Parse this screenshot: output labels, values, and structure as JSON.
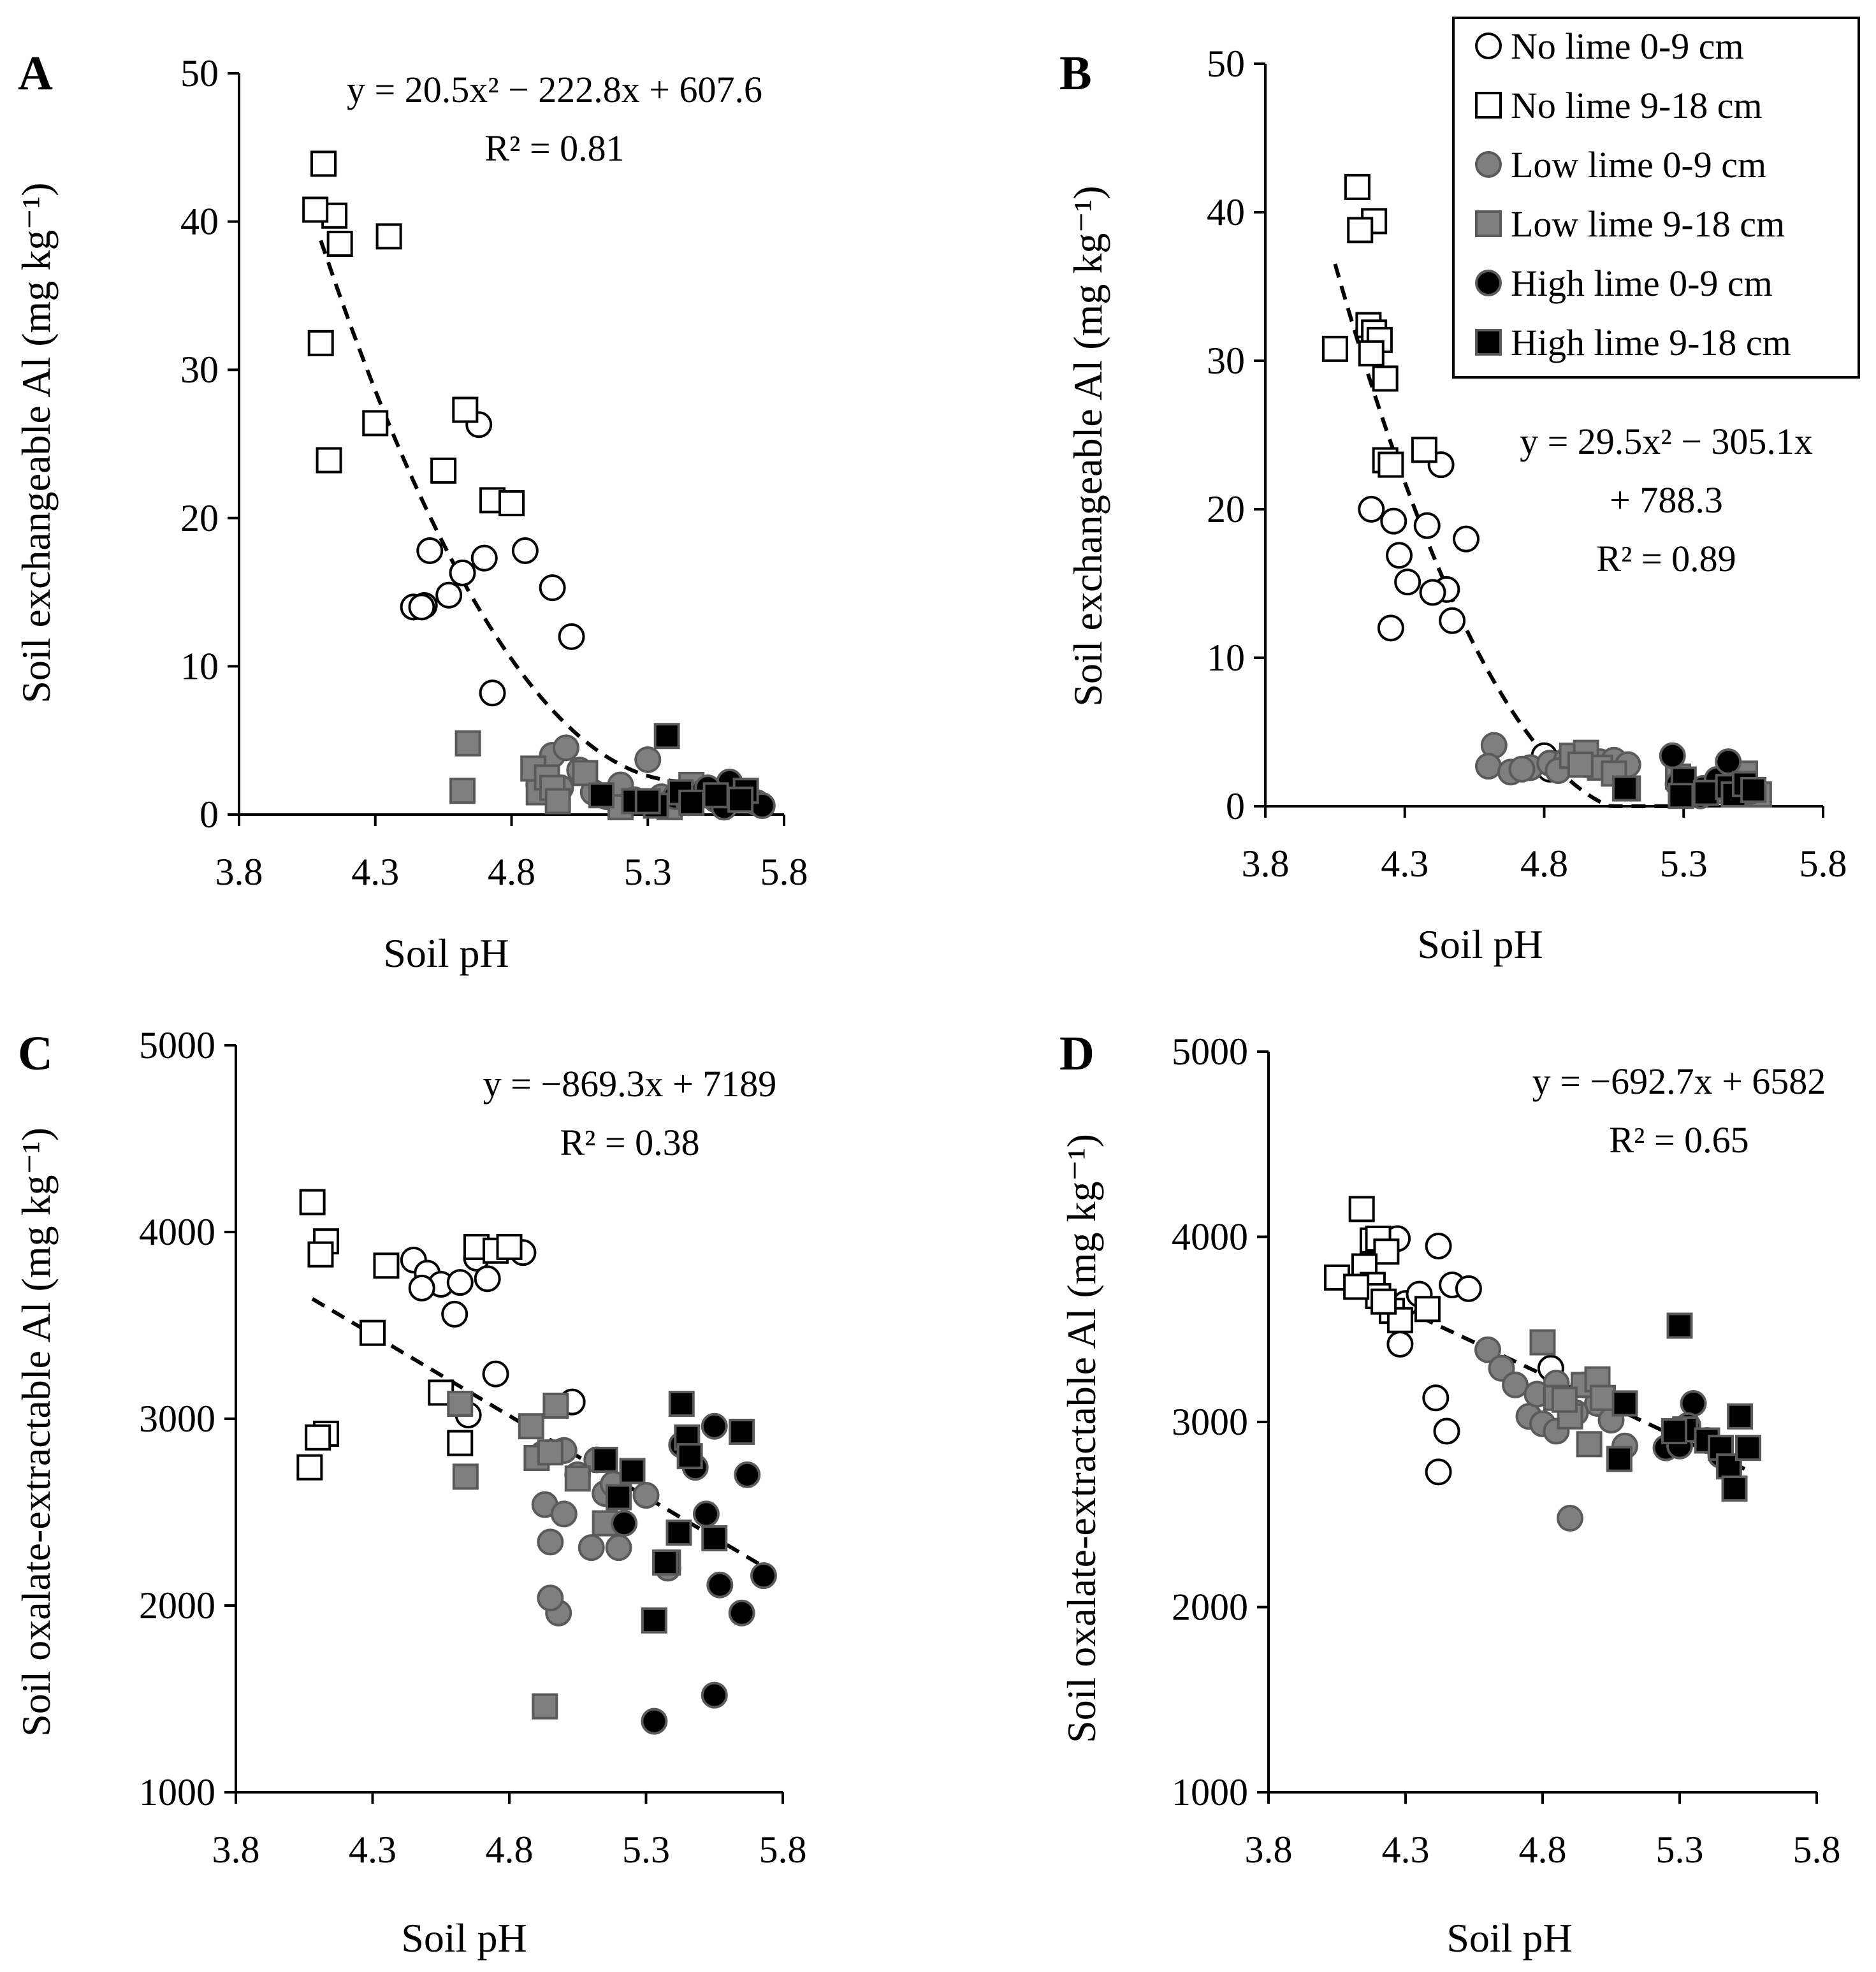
{
  "legend": {
    "entries": [
      {
        "label": "No lime 0-9 cm",
        "marker": "circle",
        "fill": "#ffffff"
      },
      {
        "label": "No lime 9-18 cm",
        "marker": "square",
        "fill": "#ffffff"
      },
      {
        "label": "Low lime 0-9 cm",
        "marker": "circle",
        "fill": "#7f7f7f"
      },
      {
        "label": "Low lime 9-18 cm",
        "marker": "square",
        "fill": "#7f7f7f"
      },
      {
        "label": "High lime 0-9 cm",
        "marker": "circle",
        "fill": "#000000"
      },
      {
        "label": "High lime 9-18 cm",
        "marker": "square",
        "fill": "#000000"
      }
    ],
    "placement": "top-right of panel B"
  },
  "colors": {
    "none": "#ffffff",
    "low": "#7f7f7f",
    "high": "#000000",
    "trend": "#000000"
  },
  "chart_data": [
    {
      "type": "scatter",
      "panel": "A",
      "xlabel": "Soil pH",
      "ylabel": "Soil exchangeable Al (mg kg⁻¹)",
      "xlim": [
        3.8,
        5.8
      ],
      "ylim": [
        0,
        50
      ],
      "xticks": [
        "3.8",
        "4.3",
        "4.8",
        "5.3",
        "5.8"
      ],
      "yticks": [
        "0",
        "10",
        "20",
        "30",
        "40",
        "50"
      ],
      "equation": [
        "y = 20.5x² − 222.8x + 607.6"
      ],
      "r2": "R² = 0.81",
      "trend": {
        "kind": "quadratic",
        "coef": [
          20.5,
          -222.8,
          607.6
        ],
        "x_range": [
          4.1,
          5.45
        ]
      },
      "series": [
        {
          "name": "No lime 0-9 cm",
          "marker": "circle",
          "color_key": "none",
          "x": [
            4.68,
            4.48,
            4.5,
            4.57,
            4.62,
            4.7,
            4.73,
            4.85,
            4.95,
            5.02,
            4.44,
            4.47
          ],
          "y": [
            26.3,
            14.1,
            17.8,
            14.8,
            16.3,
            17.3,
            8.2,
            17.8,
            15.3,
            12.0,
            14.0,
            14.0
          ]
        },
        {
          "name": "No lime 9-18 cm",
          "marker": "square",
          "color_key": "none",
          "x": [
            4.11,
            4.15,
            4.08,
            4.17,
            4.35,
            4.1,
            4.13,
            4.3,
            4.63,
            4.55,
            4.73,
            4.8
          ],
          "y": [
            43.9,
            40.4,
            40.8,
            38.5,
            39.0,
            31.8,
            23.9,
            26.4,
            27.3,
            23.2,
            21.2,
            21.0
          ]
        },
        {
          "name": "Low lime 0-9 cm",
          "marker": "circle",
          "color_key": "low",
          "x": [
            4.9,
            4.95,
            5.0,
            5.05,
            5.1,
            5.15,
            5.2,
            5.25,
            5.3,
            4.98,
            5.35,
            5.4
          ],
          "y": [
            2.0,
            4.0,
            4.5,
            3.0,
            1.5,
            1.2,
            2.0,
            1.0,
            3.7,
            1.8,
            1.2,
            0.8
          ]
        },
        {
          "name": "Low lime 9-18 cm",
          "marker": "square",
          "color_key": "low",
          "x": [
            4.64,
            4.62,
            4.88,
            4.9,
            4.93,
            4.95,
            4.97,
            5.07,
            5.2,
            5.38,
            5.46,
            5.6
          ],
          "y": [
            4.8,
            1.6,
            3.1,
            1.5,
            2.5,
            1.8,
            0.9,
            2.8,
            0.5,
            0.5,
            2.0,
            1.0
          ]
        },
        {
          "name": "High lime 0-9 cm",
          "marker": "circle",
          "color_key": "high",
          "x": [
            5.4,
            5.45,
            5.5,
            5.55,
            5.6,
            5.65,
            5.7,
            5.72,
            5.58,
            5.52
          ],
          "y": [
            1.2,
            0.8,
            1.5,
            1.0,
            2.2,
            1.2,
            0.8,
            0.6,
            0.5,
            1.8
          ]
        },
        {
          "name": "High lime 9-18 cm",
          "marker": "square",
          "color_key": "high",
          "x": [
            5.13,
            5.25,
            5.33,
            5.37,
            5.42,
            5.46,
            5.55,
            5.66,
            5.64,
            5.3
          ],
          "y": [
            1.3,
            0.9,
            0.6,
            5.3,
            1.5,
            0.8,
            1.3,
            1.6,
            1.0,
            0.9
          ]
        }
      ]
    },
    {
      "type": "scatter",
      "panel": "B",
      "xlabel": "Soil pH",
      "ylabel": "Soil exchangeable Al (mg kg⁻¹)",
      "xlim": [
        3.8,
        5.8
      ],
      "ylim": [
        0,
        50
      ],
      "xticks": [
        "3.8",
        "4.3",
        "4.8",
        "5.3",
        "5.8"
      ],
      "yticks": [
        "0",
        "10",
        "20",
        "30",
        "40",
        "50"
      ],
      "equation": [
        "y = 29.5x² − 305.1x",
        "+ 788.3"
      ],
      "r2": "R² = 0.89",
      "trend": {
        "kind": "quadratic",
        "coef": [
          29.5,
          -305.1,
          788.3
        ],
        "x_range": [
          4.05,
          5.45
        ]
      },
      "series": [
        {
          "name": "No lime 0-9 cm",
          "marker": "circle",
          "color_key": "none",
          "x": [
            4.43,
            4.18,
            4.26,
            4.38,
            4.52,
            4.28,
            4.31,
            4.45,
            4.4,
            4.47,
            4.25,
            4.8,
            4.82
          ],
          "y": [
            23.0,
            20.0,
            19.2,
            18.9,
            18.0,
            16.9,
            15.1,
            14.6,
            14.4,
            12.5,
            12.0,
            3.4,
            2.5
          ]
        },
        {
          "name": "No lime 9-18 cm",
          "marker": "square",
          "color_key": "none",
          "x": [
            4.13,
            4.19,
            4.14,
            4.17,
            4.19,
            4.21,
            4.18,
            4.05,
            4.23,
            4.37,
            4.23,
            4.25
          ],
          "y": [
            41.7,
            39.4,
            38.8,
            32.4,
            31.9,
            31.4,
            30.5,
            30.8,
            28.8,
            24.0,
            23.3,
            23.0
          ]
        },
        {
          "name": "Low lime 0-9 cm",
          "marker": "circle",
          "color_key": "low",
          "x": [
            4.62,
            4.6,
            4.68,
            4.75,
            4.82,
            4.88,
            4.95,
            5.0,
            5.05,
            5.1,
            4.72,
            4.85
          ],
          "y": [
            4.1,
            2.7,
            2.3,
            2.6,
            2.9,
            3.1,
            2.8,
            3.0,
            3.1,
            2.8,
            2.5,
            2.4
          ]
        },
        {
          "name": "Low lime 9-18 cm",
          "marker": "square",
          "color_key": "low",
          "x": [
            4.9,
            4.95,
            5.0,
            5.05,
            4.93,
            5.1,
            5.28,
            5.4,
            5.52,
            5.57
          ],
          "y": [
            3.4,
            3.6,
            2.6,
            2.2,
            2.8,
            1.2,
            2.0,
            1.0,
            2.2,
            0.8
          ]
        },
        {
          "name": "High lime 0-9 cm",
          "marker": "circle",
          "color_key": "high",
          "x": [
            5.26,
            5.28,
            5.32,
            5.37,
            5.42,
            5.46,
            5.5,
            5.54,
            5.36
          ],
          "y": [
            3.4,
            1.5,
            0.9,
            1.2,
            1.8,
            3.0,
            1.5,
            1.0,
            0.7
          ]
        },
        {
          "name": "High lime 9-18 cm",
          "marker": "square",
          "color_key": "high",
          "x": [
            5.09,
            5.3,
            5.38,
            5.46,
            5.48,
            5.52,
            5.55,
            5.29
          ],
          "y": [
            1.2,
            1.8,
            0.9,
            1.3,
            0.8,
            1.5,
            1.1,
            0.7
          ]
        }
      ]
    },
    {
      "type": "scatter",
      "panel": "C",
      "xlabel": "Soil pH",
      "ylabel": "Soil oxalate-extractable Al (mg kg⁻¹)",
      "xlim": [
        3.8,
        5.8
      ],
      "ylim": [
        1000,
        5000
      ],
      "xticks": [
        "3.8",
        "4.3",
        "4.8",
        "5.3",
        "5.8"
      ],
      "yticks": [
        "1000",
        "2000",
        "3000",
        "4000",
        "5000"
      ],
      "equation": [
        "y = −869.3x + 7189"
      ],
      "r2": "R² = 0.38",
      "trend": {
        "kind": "linear",
        "coef": [
          -869.3,
          7189
        ],
        "x_range": [
          4.08,
          5.72
        ]
      },
      "series": [
        {
          "name": "No lime 0-9 cm",
          "marker": "circle",
          "color_key": "none",
          "x": [
            4.45,
            4.5,
            4.55,
            4.6,
            4.68,
            4.72,
            4.85,
            4.48,
            4.62,
            4.75,
            5.03,
            4.65
          ],
          "y": [
            3850,
            3780,
            3720,
            3560,
            3860,
            3750,
            3890,
            3700,
            3730,
            3240,
            3090,
            3020
          ]
        },
        {
          "name": "No lime 9-18 cm",
          "marker": "square",
          "color_key": "none",
          "x": [
            4.08,
            4.13,
            4.11,
            4.35,
            4.68,
            4.75,
            4.8,
            4.3,
            4.55,
            4.62,
            4.07,
            4.13,
            4.1
          ],
          "y": [
            4160,
            3950,
            3880,
            3820,
            3920,
            3900,
            3920,
            3460,
            3140,
            2870,
            2740,
            2920,
            2900
          ]
        },
        {
          "name": "Low lime 0-9 cm",
          "marker": "circle",
          "color_key": "low",
          "x": [
            4.93,
            4.95,
            5.0,
            5.05,
            5.1,
            5.15,
            5.2,
            5.3,
            5.38,
            4.98,
            5.12,
            4.92,
            4.95,
            5.0,
            5.18
          ],
          "y": [
            2540,
            2340,
            2490,
            2700,
            2310,
            2600,
            2310,
            2590,
            2200,
            1960,
            2780,
            2810,
            2040,
            2830,
            2650
          ]
        },
        {
          "name": "Low lime 9-18 cm",
          "marker": "square",
          "color_key": "low",
          "x": [
            4.64,
            4.62,
            4.88,
            4.9,
            4.95,
            4.97,
            5.05,
            5.15,
            4.93
          ],
          "y": [
            2690,
            3080,
            2960,
            2790,
            2820,
            3070,
            2680,
            2440,
            1460
          ]
        },
        {
          "name": "High lime 0-9 cm",
          "marker": "circle",
          "color_key": "high",
          "x": [
            5.33,
            5.43,
            5.48,
            5.52,
            5.55,
            5.57,
            5.65,
            5.67,
            5.73,
            5.55,
            5.22
          ],
          "y": [
            1380,
            2860,
            2740,
            2490,
            1520,
            2110,
            1960,
            2700,
            2160,
            2960,
            2440
          ]
        },
        {
          "name": "High lime 9-18 cm",
          "marker": "square",
          "color_key": "high",
          "x": [
            5.15,
            5.25,
            5.33,
            5.38,
            5.42,
            5.43,
            5.45,
            5.46,
            5.55,
            5.65,
            5.37,
            5.2
          ],
          "y": [
            2780,
            2720,
            1920,
            2230,
            2390,
            3080,
            2900,
            2800,
            2360,
            2930,
            2230,
            2580
          ]
        }
      ]
    },
    {
      "type": "scatter",
      "panel": "D",
      "xlabel": "Soil pH",
      "ylabel": "Soil oxalate-extractable Al (mg kg⁻¹)",
      "xlim": [
        3.8,
        5.8
      ],
      "ylim": [
        1000,
        5000
      ],
      "xticks": [
        "3.8",
        "4.3",
        "4.8",
        "5.3",
        "5.8"
      ],
      "yticks": [
        "1000",
        "2000",
        "3000",
        "4000",
        "5000"
      ],
      "equation": [
        "y = −692.7x + 6582"
      ],
      "r2": "R² = 0.65",
      "trend": {
        "kind": "linear",
        "coef": [
          -692.7,
          6582
        ],
        "x_range": [
          4.05,
          5.55
        ]
      },
      "series": [
        {
          "name": "No lime 0-9 cm",
          "marker": "circle",
          "color_key": "none",
          "x": [
            4.27,
            4.42,
            4.47,
            4.53,
            4.3,
            4.35,
            4.28,
            4.41,
            4.45,
            4.42,
            4.83
          ],
          "y": [
            3990,
            3950,
            3740,
            3720,
            3640,
            3690,
            3420,
            3130,
            2950,
            2730,
            3290
          ]
        },
        {
          "name": "No lime 9-18 cm",
          "marker": "square",
          "color_key": "none",
          "x": [
            4.14,
            4.18,
            4.2,
            4.23,
            4.15,
            4.05,
            4.18,
            4.2,
            4.38,
            4.25,
            4.28,
            4.12,
            4.22
          ],
          "y": [
            4150,
            3980,
            3990,
            3920,
            3840,
            3780,
            3740,
            3680,
            3610,
            3600,
            3550,
            3730,
            3650
          ]
        },
        {
          "name": "Low lime 0-9 cm",
          "marker": "circle",
          "color_key": "low",
          "x": [
            4.6,
            4.65,
            4.7,
            4.75,
            4.8,
            4.85,
            4.9,
            4.95,
            5.0,
            5.05,
            4.78,
            4.92,
            5.1,
            4.85
          ],
          "y": [
            3390,
            3290,
            3200,
            3030,
            2990,
            3210,
            2480,
            3200,
            3100,
            3010,
            3150,
            3050,
            2870,
            2950
          ]
        },
        {
          "name": "Low lime 9-18 cm",
          "marker": "square",
          "color_key": "low",
          "x": [
            4.8,
            4.85,
            4.9,
            4.95,
            5.0,
            5.02,
            4.97,
            5.1,
            4.88
          ],
          "y": [
            3430,
            3130,
            3030,
            3200,
            3230,
            3130,
            2880,
            3100,
            3120
          ]
        },
        {
          "name": "High lime 0-9 cm",
          "marker": "circle",
          "color_key": "high",
          "x": [
            5.25,
            5.3,
            5.35,
            5.4,
            5.45,
            5.33
          ],
          "y": [
            2860,
            2870,
            3100,
            2900,
            2820,
            2980
          ]
        },
        {
          "name": "High lime 9-18 cm",
          "marker": "square",
          "color_key": "high",
          "x": [
            5.1,
            5.3,
            5.32,
            5.4,
            5.45,
            5.48,
            5.52,
            5.55,
            5.5,
            5.08,
            5.28
          ],
          "y": [
            3100,
            3520,
            2960,
            2900,
            2860,
            2760,
            3030,
            2860,
            2640,
            2800,
            2950
          ]
        }
      ]
    }
  ]
}
